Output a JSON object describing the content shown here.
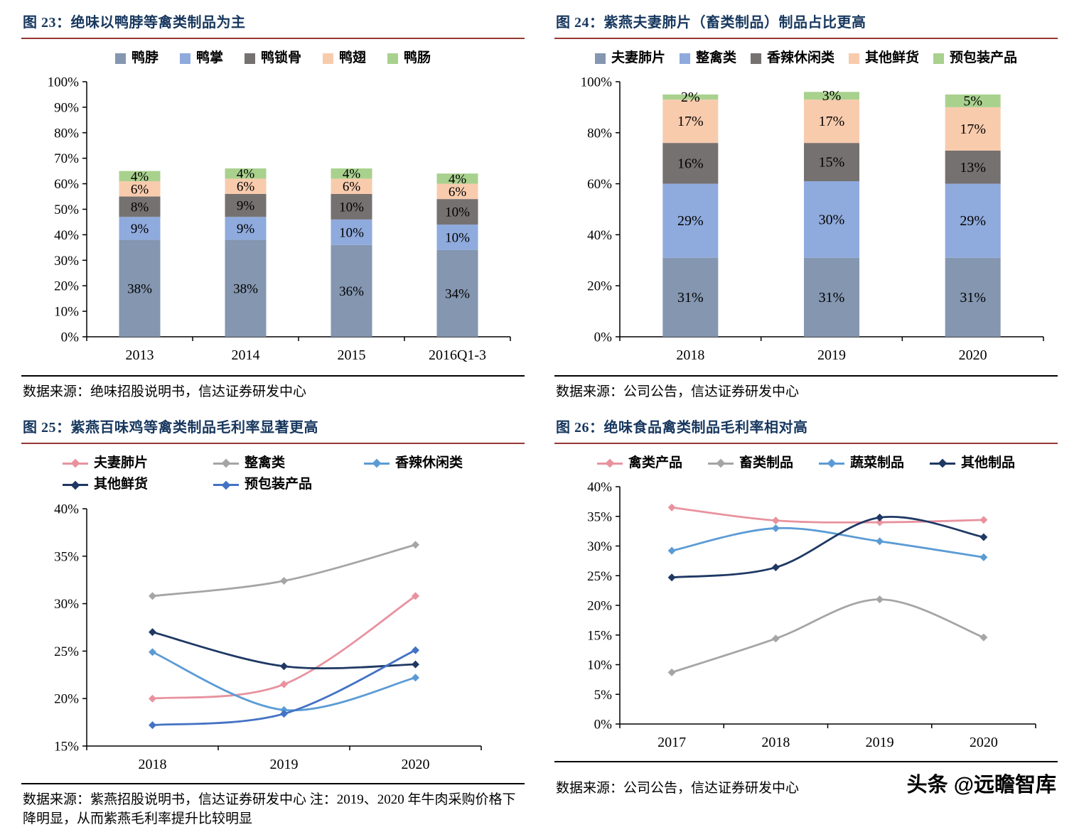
{
  "watermark": {
    "text": "头条 @远瞻智库"
  },
  "styles": {
    "title_color": "#17375E",
    "title_rule_color": "#953735",
    "axis_color": "#000000",
    "background": "#FFFFFF"
  },
  "chart_data": [
    {
      "id": "fig-23",
      "type": "bar",
      "stacked": true,
      "title": "图 23：绝味以鸭脖等禽类制品为主",
      "source": "数据来源：绝味招股说明书，信达证券研发中心",
      "categories": [
        "2013",
        "2014",
        "2015",
        "2016Q1-3"
      ],
      "series": [
        {
          "name": "鸭脖",
          "color": "#8496B0",
          "values": [
            38,
            38,
            36,
            34
          ]
        },
        {
          "name": "鸭掌",
          "color": "#8FAADC",
          "values": [
            9,
            9,
            10,
            10
          ]
        },
        {
          "name": "鸭锁骨",
          "color": "#767171",
          "values": [
            8,
            9,
            10,
            10
          ]
        },
        {
          "name": "鸭翅",
          "color": "#F8CBAD",
          "values": [
            6,
            6,
            6,
            6
          ]
        },
        {
          "name": "鸭肠",
          "color": "#A9D18E",
          "values": [
            4,
            4,
            4,
            4
          ]
        }
      ],
      "ylim": [
        0,
        100
      ],
      "ytick_step": 10,
      "grid": false,
      "legend_position": "top",
      "bar_labels": true
    },
    {
      "id": "fig-24",
      "type": "bar",
      "stacked": true,
      "title": "图 24：紫燕夫妻肺片（畜类制品）制品占比更高",
      "source": "数据来源：公司公告，信达证券研发中心",
      "categories": [
        "2018",
        "2019",
        "2020"
      ],
      "series": [
        {
          "name": "夫妻肺片",
          "color": "#8496B0",
          "values": [
            31,
            31,
            31
          ]
        },
        {
          "name": "整禽类",
          "color": "#8FAADC",
          "values": [
            29,
            30,
            29
          ]
        },
        {
          "name": "香辣休闲类",
          "color": "#767171",
          "values": [
            16,
            15,
            13
          ]
        },
        {
          "name": "其他鲜货",
          "color": "#F8CBAD",
          "values": [
            17,
            17,
            17
          ]
        },
        {
          "name": "预包装产品",
          "color": "#A9D18E",
          "values": [
            2,
            3,
            5
          ]
        }
      ],
      "ylim": [
        0,
        100
      ],
      "ytick_step": 20,
      "grid": false,
      "legend_position": "top",
      "bar_labels": true
    },
    {
      "id": "fig-25",
      "type": "line",
      "title": "图 25：紫燕百味鸡等禽类制品毛利率显著更高",
      "source": "数据来源：紫燕招股说明书，信达证券研发中心  注：2019、2020 年牛肉采购价格下降明显，从而紫燕毛利率提升比较明显",
      "categories": [
        "2018",
        "2019",
        "2020"
      ],
      "series": [
        {
          "name": "夫妻肺片",
          "color": "#E8929E",
          "values": [
            20.0,
            21.5,
            30.8
          ]
        },
        {
          "name": "整禽类",
          "color": "#A5A5A5",
          "values": [
            30.8,
            32.4,
            36.2
          ]
        },
        {
          "name": "香辣休闲类",
          "color": "#5B9BD5",
          "values": [
            24.9,
            18.8,
            22.2
          ]
        },
        {
          "name": "其他鲜货",
          "color": "#1F3864",
          "values": [
            27.0,
            23.4,
            23.6
          ]
        },
        {
          "name": "预包装产品",
          "color": "#4472C4",
          "values": [
            17.2,
            18.4,
            25.1
          ]
        }
      ],
      "ylim": [
        15,
        40
      ],
      "ytick_step": 5,
      "grid": false,
      "legend_position": "top"
    },
    {
      "id": "fig-26",
      "type": "line",
      "title": "图 26：绝味食品禽类制品毛利率相对高",
      "source": "数据来源：公司公告，信达证券研发中心",
      "categories": [
        "2017",
        "2018",
        "2019",
        "2020"
      ],
      "series": [
        {
          "name": "禽类产品",
          "color": "#E8929E",
          "values": [
            36.5,
            34.3,
            34.0,
            34.4
          ]
        },
        {
          "name": "畜类制品",
          "color": "#A5A5A5",
          "values": [
            8.7,
            14.4,
            21.0,
            14.6
          ]
        },
        {
          "name": "蔬菜制品",
          "color": "#5B9BD5",
          "values": [
            29.2,
            33.0,
            30.8,
            28.1
          ]
        },
        {
          "name": "其他制品",
          "color": "#1F3864",
          "values": [
            24.7,
            26.4,
            34.8,
            31.5
          ]
        }
      ],
      "ylim": [
        0,
        40
      ],
      "ytick_step": 5,
      "grid": false,
      "legend_position": "top"
    }
  ]
}
